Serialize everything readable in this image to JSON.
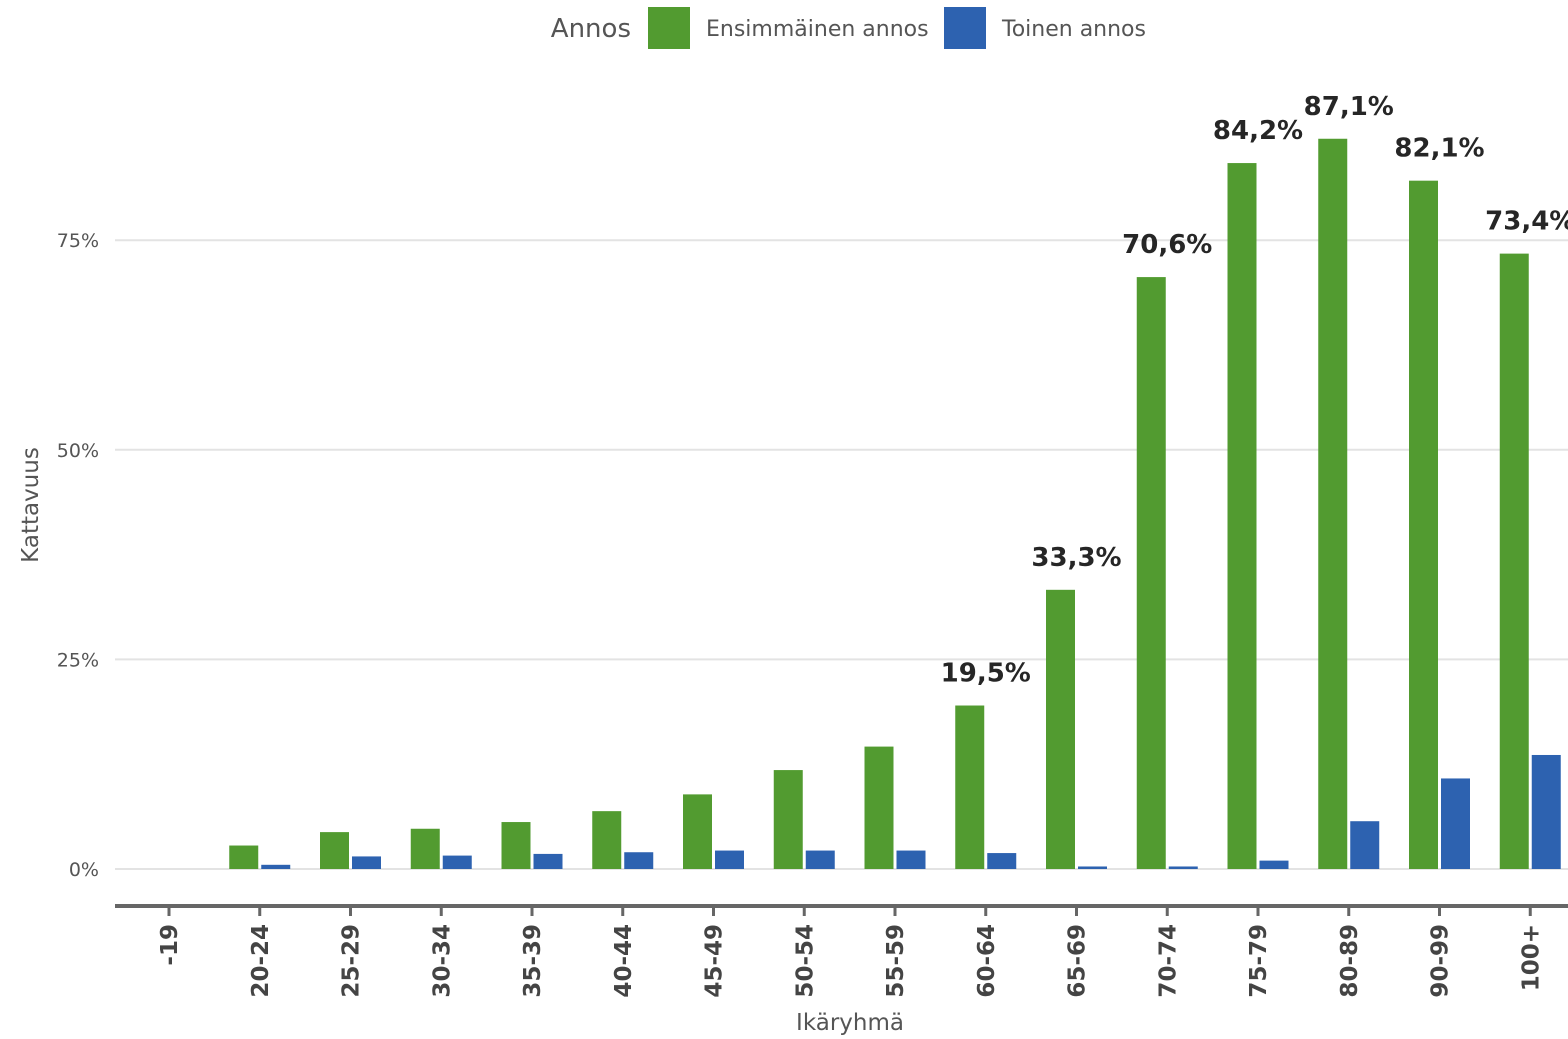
{
  "chart_data": {
    "type": "bar",
    "title": "",
    "xlabel": "Ikäryhmä",
    "ylabel": "Kattavuus",
    "ylim": [
      0,
      0.9
    ],
    "yticks": [
      0,
      0.25,
      0.5,
      0.75
    ],
    "ytick_labels": [
      "0%",
      "25%",
      "50%",
      "75%"
    ],
    "grid": true,
    "legend": {
      "title": "Annos",
      "position": "top"
    },
    "categories": [
      "-19",
      "20-24",
      "25-29",
      "30-34",
      "35-39",
      "40-44",
      "45-49",
      "50-54",
      "55-59",
      "60-64",
      "65-69",
      "70-74",
      "75-79",
      "80-89",
      "90-99",
      "100+"
    ],
    "series": [
      {
        "name": "Ensimmäinen annos",
        "color": "#529b30",
        "values": [
          0,
          0.028,
          0.044,
          0.048,
          0.056,
          0.069,
          0.089,
          0.118,
          0.146,
          0.195,
          0.333,
          0.706,
          0.842,
          0.871,
          0.821,
          0.734
        ]
      },
      {
        "name": "Toinen annos",
        "color": "#2d62b0",
        "values": [
          0,
          0.005,
          0.015,
          0.016,
          0.018,
          0.02,
          0.022,
          0.022,
          0.022,
          0.019,
          0.003,
          0.003,
          0.01,
          0.057,
          0.108,
          0.136
        ]
      }
    ],
    "data_labels": [
      {
        "category": "60-64",
        "text": "19,5%"
      },
      {
        "category": "65-69",
        "text": "33,3%"
      },
      {
        "category": "70-74",
        "text": "70,6%"
      },
      {
        "category": "75-79",
        "text": "84,2%"
      },
      {
        "category": "80-89",
        "text": "87,1%"
      },
      {
        "category": "90-99",
        "text": "82,1%"
      },
      {
        "category": "100+",
        "text": "73,4%"
      }
    ]
  }
}
